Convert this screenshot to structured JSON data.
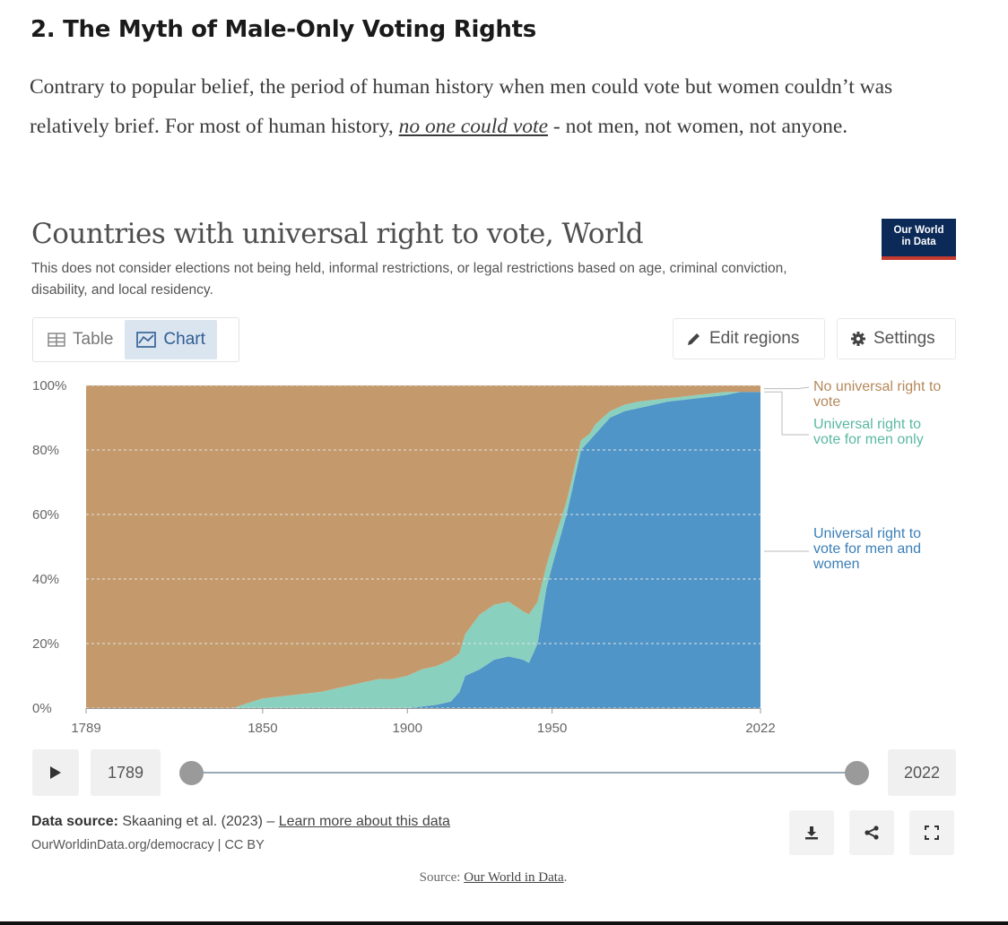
{
  "article": {
    "section_title": "2. The Myth of Male-Only Voting Rights",
    "intro_before": "Contrary to popular belief, the period of human history when men could vote but women couldn’t was relatively brief. For most of human history, ",
    "intro_link": "no one could vote",
    "intro_after": " - not men, not women, not anyone."
  },
  "chart_card": {
    "title": "Countries with universal right to vote, World",
    "subtitle": "This does not consider elections not being held, informal restrictions, or legal restrictions based on age, criminal conviction, disability, and local residency.",
    "logo_line1": "Our World",
    "logo_line2": "in Data",
    "tab_table": "Table",
    "tab_chart": "Chart",
    "edit_regions": "Edit regions",
    "settings": "Settings",
    "timeline_start": "1789",
    "timeline_end": "2022",
    "data_source_label": "Data source:",
    "data_source_text": "Skaaning et al. (2023) – ",
    "data_source_link": "Learn more about this data",
    "footer_url": "OurWorldinData.org/democracy | CC BY",
    "source_prefix": "Source: ",
    "source_link": "Our World in Data",
    "source_suffix": "."
  },
  "colors": {
    "none": "#c49a6c",
    "men_only": "#8ad0bf",
    "men_women": "#4f95c7",
    "legend_none": "#b4895a",
    "legend_men": "#5bb8a2",
    "legend_both": "#3b7fb8"
  },
  "chart_data": {
    "type": "area",
    "stacked": true,
    "title": "Countries with universal right to vote, World",
    "ylabel": "",
    "ylim": [
      0,
      100
    ],
    "yticks": [
      "0%",
      "20%",
      "40%",
      "60%",
      "80%",
      "100%"
    ],
    "xticks": [
      "1789",
      "1850",
      "1900",
      "1950",
      "2022"
    ],
    "xlim": [
      1789,
      2022
    ],
    "x": [
      1789,
      1800,
      1840,
      1843,
      1850,
      1860,
      1870,
      1880,
      1890,
      1895,
      1900,
      1905,
      1910,
      1915,
      1918,
      1920,
      1925,
      1930,
      1935,
      1940,
      1942,
      1945,
      1948,
      1950,
      1955,
      1960,
      1963,
      1965,
      1970,
      1975,
      1980,
      1990,
      2000,
      2010,
      2015,
      2022
    ],
    "series": [
      {
        "name": "Universal right to vote for men and women",
        "values": [
          0,
          0,
          0,
          0,
          0,
          0,
          0,
          0,
          0,
          0,
          0,
          0.5,
          1,
          2,
          5,
          10,
          12,
          15,
          16,
          15,
          14,
          20,
          37,
          44,
          60,
          80,
          83,
          85,
          90,
          92,
          93,
          95,
          96,
          97,
          98,
          98
        ]
      },
      {
        "name": "Universal right to vote for men only",
        "values": [
          0,
          0,
          0,
          1,
          3,
          4,
          5,
          7,
          9,
          9,
          10,
          11.5,
          12,
          13,
          12,
          13,
          17,
          17,
          17,
          15,
          15,
          13,
          7,
          6,
          4,
          3,
          2,
          3,
          2,
          2,
          2,
          1,
          1,
          1,
          0,
          0
        ]
      },
      {
        "name": "No universal right to vote",
        "values": [
          100,
          100,
          100,
          99,
          97,
          96,
          95,
          93,
          91,
          91,
          90,
          88,
          87,
          85,
          83,
          77,
          71,
          68,
          67,
          70,
          71,
          67,
          56,
          50,
          36,
          17,
          15,
          12,
          8,
          6,
          5,
          4,
          3,
          2,
          2,
          2
        ]
      }
    ],
    "legend": [
      "No universal right to vote",
      "Universal right to vote for men only",
      "Universal right to vote for men and women"
    ]
  }
}
